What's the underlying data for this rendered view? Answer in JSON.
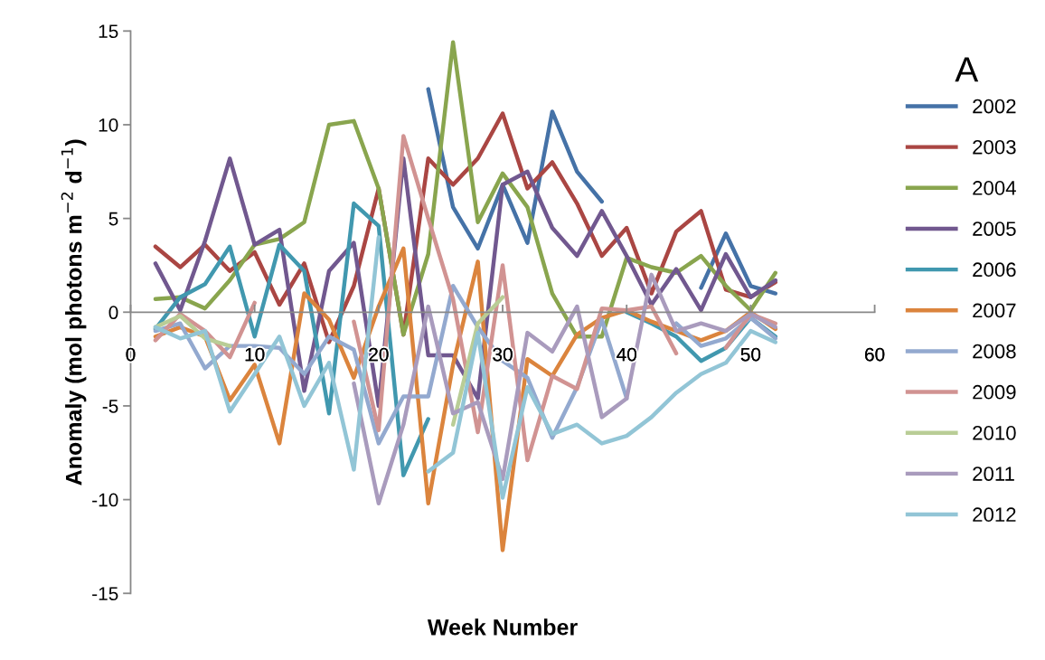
{
  "chart_data": {
    "type": "line",
    "xlabel": "Week Number",
    "ylabel": "Anomaly (mol photons m$^{−2}$ d$^{−1}$)",
    "annotations": [
      "A"
    ],
    "x": [
      2,
      4,
      6,
      8,
      10,
      12,
      14,
      16,
      18,
      20,
      22,
      24,
      26,
      28,
      30,
      32,
      34,
      36,
      38,
      40,
      42,
      44,
      46,
      48,
      50,
      52
    ],
    "xlim": [
      0,
      60
    ],
    "xticks": [
      0,
      10,
      20,
      30,
      40,
      50,
      60
    ],
    "ylim": [
      -15,
      15
    ],
    "yticks": [
      -15,
      -10,
      -5,
      0,
      5,
      10,
      15
    ],
    "grid": false,
    "legend": "right",
    "marker": "none",
    "line_style": "solid",
    "series": [
      {
        "name": "2002",
        "color": "#4572a7",
        "values": [
          null,
          null,
          null,
          null,
          null,
          null,
          null,
          null,
          null,
          null,
          null,
          11.9,
          5.6,
          3.4,
          6.8,
          3.7,
          10.7,
          7.5,
          5.9,
          null,
          null,
          null,
          1.3,
          4.2,
          1.4,
          1.0
        ]
      },
      {
        "name": "2003",
        "color": "#aa4643",
        "values": [
          3.5,
          2.4,
          3.6,
          2.2,
          3.2,
          0.4,
          2.6,
          -1.6,
          1.4,
          6.6,
          -1.2,
          8.2,
          6.8,
          8.2,
          10.6,
          6.6,
          8.0,
          5.8,
          3.0,
          4.5,
          1.0,
          4.3,
          5.4,
          1.2,
          0.8,
          1.6
        ]
      },
      {
        "name": "2004",
        "color": "#89a54e",
        "values": [
          0.7,
          0.8,
          0.2,
          1.7,
          3.6,
          3.9,
          4.8,
          10.0,
          10.2,
          6.6,
          -1.2,
          3.1,
          14.4,
          4.8,
          7.4,
          5.6,
          1.0,
          -1.3,
          -1.3,
          2.9,
          2.4,
          2.1,
          3.0,
          1.4,
          0.1,
          2.1
        ]
      },
      {
        "name": "2005",
        "color": "#71588f",
        "values": [
          2.6,
          0.1,
          3.8,
          8.2,
          3.6,
          4.4,
          -4.2,
          2.2,
          3.7,
          -5.0,
          8.2,
          -2.3,
          -2.3,
          -4.6,
          6.8,
          7.5,
          4.5,
          3.0,
          5.4,
          3.0,
          0.4,
          2.3,
          0.1,
          3.1,
          0.8,
          1.7
        ]
      },
      {
        "name": "2006",
        "color": "#4198af",
        "values": [
          -0.9,
          0.8,
          1.5,
          3.5,
          -1.3,
          3.6,
          2.2,
          -5.4,
          5.8,
          4.6,
          -8.7,
          -5.7,
          null,
          null,
          null,
          null,
          null,
          null,
          null,
          0.0,
          -0.6,
          -1.3,
          -2.6,
          -1.9,
          -0.3,
          -1.3
        ]
      },
      {
        "name": "2007",
        "color": "#db843d",
        "values": [
          -1.3,
          -0.8,
          -1.3,
          -4.7,
          -2.8,
          -7.0,
          1.0,
          -0.4,
          -3.5,
          0.3,
          3.4,
          -10.2,
          -2.8,
          2.7,
          -12.7,
          -2.5,
          -3.4,
          -1.2,
          -0.3,
          0.1,
          -0.5,
          -1.0,
          -1.5,
          -1.0,
          0.0,
          -0.9
        ]
      },
      {
        "name": "2008",
        "color": "#93a9cf",
        "values": [
          -1.0,
          -0.6,
          -3.0,
          -1.8,
          -1.8,
          -1.9,
          -3.3,
          -1.3,
          -2.0,
          -7.0,
          -4.5,
          -4.5,
          1.4,
          -0.8,
          -2.6,
          -3.5,
          -6.7,
          -4.0,
          -0.4,
          -4.6,
          null,
          -0.6,
          -1.8,
          -1.4,
          -0.3,
          -1.4
        ]
      },
      {
        "name": "2009",
        "color": "#d19392",
        "values": [
          -1.5,
          -0.1,
          -1.0,
          -2.4,
          0.5,
          null,
          null,
          null,
          -0.5,
          -6.3,
          9.4,
          5.0,
          0.7,
          -6.4,
          2.5,
          -7.9,
          -3.4,
          -4.1,
          0.2,
          0.1,
          0.3,
          -2.2,
          null,
          -1.9,
          -0.1,
          -0.6
        ]
      },
      {
        "name": "2010",
        "color": "#b9cd96",
        "values": [
          -0.8,
          -0.2,
          -1.4,
          -1.8,
          null,
          null,
          null,
          null,
          null,
          null,
          null,
          null,
          -6.0,
          -0.6,
          0.8,
          null,
          null,
          null,
          null,
          null,
          null,
          null,
          null,
          null,
          null,
          null
        ]
      },
      {
        "name": "2011",
        "color": "#a99bbd",
        "values": [
          null,
          null,
          null,
          null,
          null,
          null,
          null,
          null,
          -3.8,
          -10.2,
          -6.0,
          0.3,
          -5.4,
          -4.8,
          -8.9,
          -1.1,
          -2.1,
          0.3,
          -5.6,
          -4.6,
          2.0,
          -1.0,
          -0.6,
          -1.0,
          -0.1,
          -0.8
        ]
      },
      {
        "name": "2012",
        "color": "#92c5d6",
        "values": [
          -0.8,
          -1.4,
          -1.0,
          -5.3,
          -3.3,
          -1.3,
          -5.0,
          -2.7,
          -8.4,
          4.0,
          null,
          -8.5,
          -7.5,
          -1.1,
          -9.9,
          -4.0,
          -6.5,
          -6.0,
          -7.0,
          -6.6,
          -5.6,
          -4.3,
          -3.3,
          -2.7,
          -1.0,
          -1.6
        ]
      }
    ]
  }
}
